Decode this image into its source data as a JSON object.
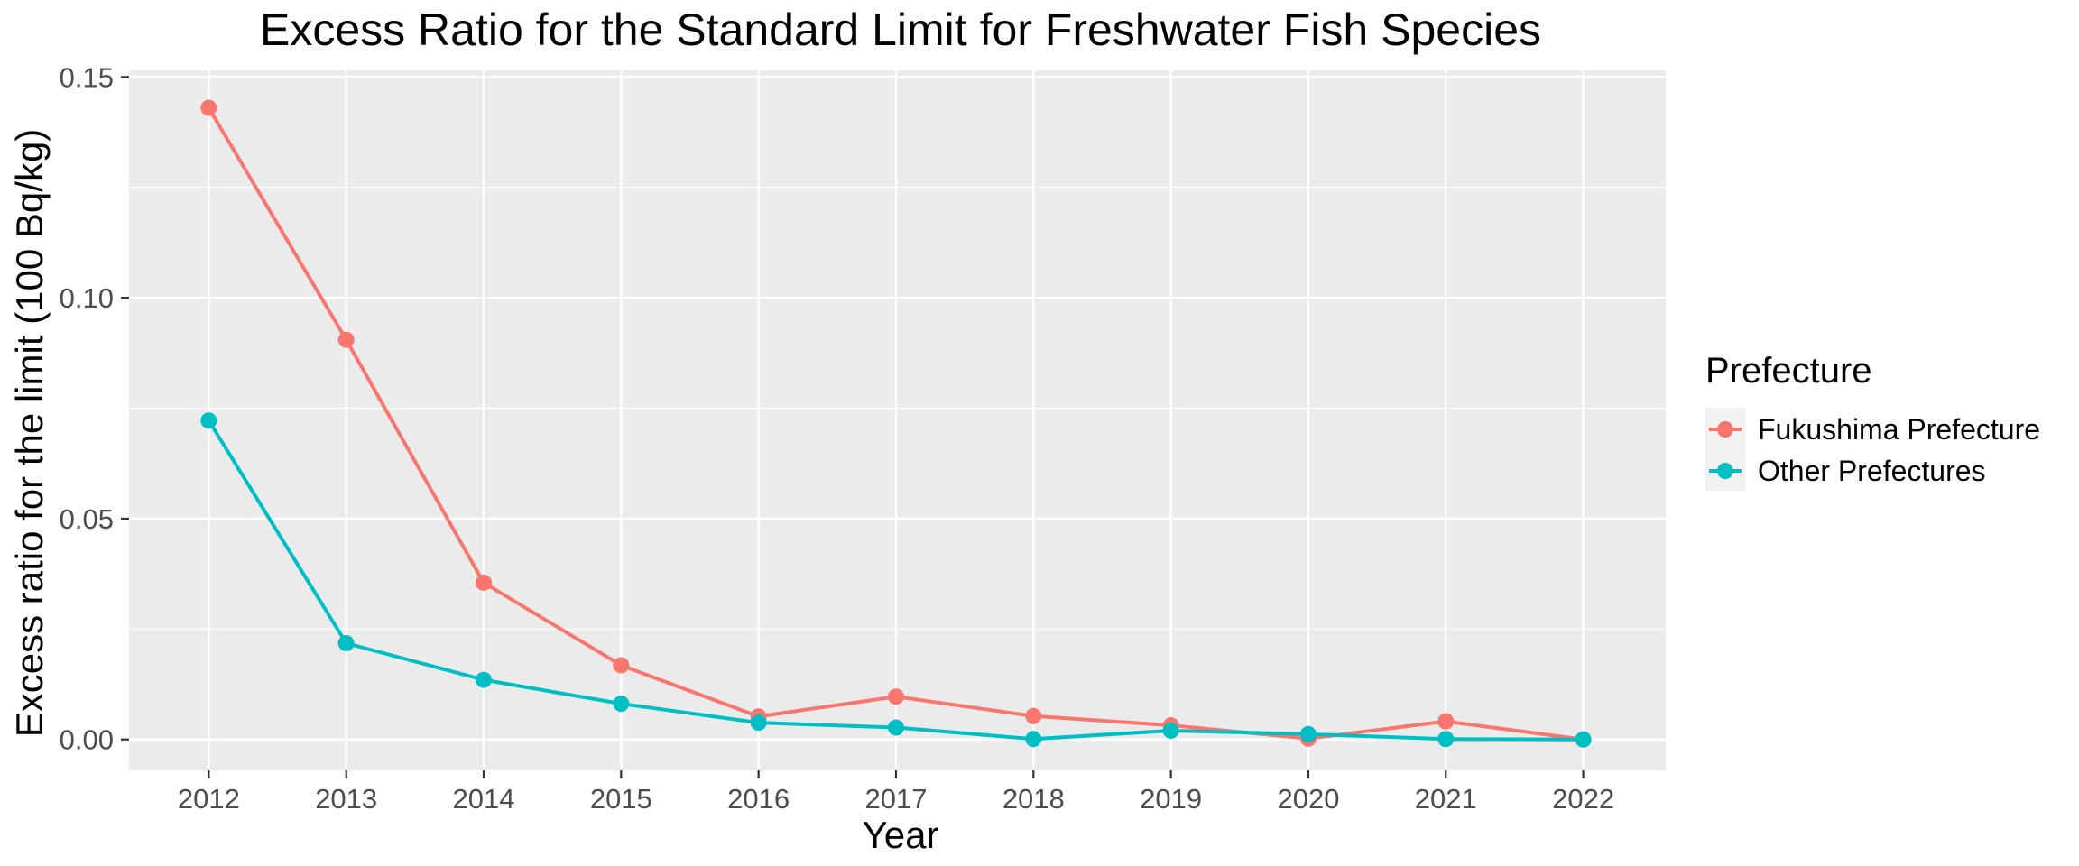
{
  "chart_data": {
    "type": "line",
    "title": "Excess Ratio for the Standard Limit for Freshwater Fish Species",
    "xlabel": "Year",
    "ylabel": "Excess ratio for the limit (100 Bq/kg)",
    "x": [
      2012,
      2013,
      2014,
      2015,
      2016,
      2017,
      2018,
      2019,
      2020,
      2021,
      2022
    ],
    "x_tick_labels": [
      "2012",
      "2013",
      "2014",
      "2015",
      "2016",
      "2017",
      "2018",
      "2019",
      "2020",
      "2021",
      "2022"
    ],
    "y_ticks": [
      0.0,
      0.05,
      0.1,
      0.15
    ],
    "y_tick_labels": [
      "0.00",
      "0.05",
      "0.10",
      "0.15"
    ],
    "xlim": [
      2011.42,
      2022.6
    ],
    "ylim": [
      -0.007,
      0.1515
    ],
    "grid": true,
    "legend": {
      "title": "Prefecture",
      "position": "right"
    },
    "series": [
      {
        "name": "Fukushima Prefecture",
        "color": "#F8766D",
        "values": [
          0.143,
          0.0905,
          0.0355,
          0.0168,
          0.0052,
          0.0097,
          0.0053,
          0.0032,
          0.0002,
          0.0041,
          0.0
        ]
      },
      {
        "name": "Other Prefectures",
        "color": "#00BFC4",
        "values": [
          0.0722,
          0.0218,
          0.0135,
          0.0081,
          0.0038,
          0.0027,
          0.0001,
          0.002,
          0.0012,
          0.0001,
          0.0
        ]
      }
    ]
  }
}
